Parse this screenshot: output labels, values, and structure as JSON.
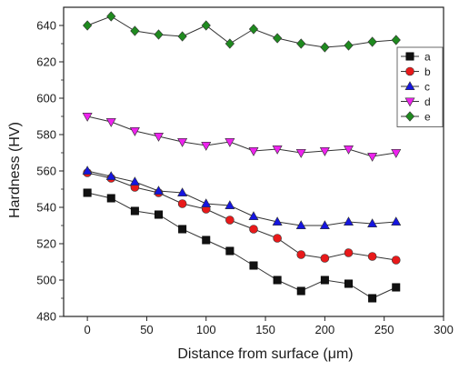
{
  "chart_data": {
    "type": "line",
    "xlabel": "Distance from surface (μm)",
    "ylabel": "Hardness (HV)",
    "xlim": [
      -20,
      300
    ],
    "ylim": [
      480,
      650
    ],
    "xticks": [
      0,
      50,
      100,
      150,
      200,
      250,
      300
    ],
    "yticks": [
      480,
      500,
      520,
      540,
      560,
      580,
      600,
      620,
      640
    ],
    "x": [
      0,
      20,
      40,
      60,
      80,
      100,
      120,
      140,
      160,
      180,
      200,
      220,
      240,
      260
    ],
    "legend_position": "top-right",
    "series": [
      {
        "name": "a",
        "color": "#111111",
        "marker": "square",
        "values": [
          548,
          545,
          538,
          536,
          528,
          522,
          516,
          508,
          500,
          494,
          500,
          498,
          490,
          496
        ]
      },
      {
        "name": "b",
        "color": "#e8191a",
        "marker": "circle",
        "values": [
          559,
          556,
          551,
          548,
          542,
          539,
          533,
          528,
          523,
          514,
          512,
          515,
          513,
          511
        ]
      },
      {
        "name": "c",
        "color": "#1515e0",
        "marker": "triangle-up",
        "values": [
          560,
          557,
          554,
          549,
          548,
          542,
          541,
          535,
          532,
          530,
          530,
          532,
          531,
          532
        ]
      },
      {
        "name": "d",
        "color": "#ee22ee",
        "marker": "triangle-down",
        "values": [
          590,
          587,
          582,
          579,
          576,
          574,
          576,
          571,
          572,
          570,
          571,
          572,
          568,
          570
        ]
      },
      {
        "name": "e",
        "color": "#1f8a1f",
        "marker": "diamond",
        "values": [
          640,
          645,
          637,
          635,
          634,
          640,
          630,
          638,
          633,
          630,
          628,
          629,
          631,
          632
        ]
      }
    ]
  }
}
